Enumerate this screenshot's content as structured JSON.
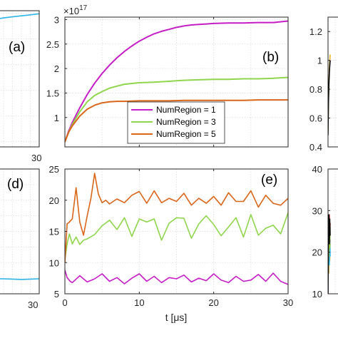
{
  "chart_data": [
    {
      "panel": "(a)",
      "type": "line",
      "partial": true,
      "x_ticks": [
        "30"
      ],
      "series": [
        {
          "color": "#2cb5e6",
          "x": [
            0,
            5,
            10,
            15,
            20,
            25,
            30
          ],
          "y": [
            2.85,
            2.88,
            2.91,
            2.93,
            2.95,
            2.97,
            2.99
          ]
        }
      ],
      "xlim": [
        0,
        30
      ],
      "ylim": [
        0.4,
        3.05
      ],
      "grid": true
    },
    {
      "panel": "(b)",
      "type": "line",
      "exponent": "×10",
      "exponent_power": "17",
      "xlim": [
        0,
        30
      ],
      "ylim": [
        0.4,
        3.05
      ],
      "y_ticks": [
        "1",
        "1.5",
        "2",
        "2.5",
        "3"
      ],
      "y_tick_values": [
        1,
        1.5,
        2,
        2.5,
        3
      ],
      "x_tick_values": [
        0,
        10,
        20,
        30
      ],
      "grid": true,
      "legend_placement": "bottom-center",
      "series": [
        {
          "name": "NumRegion = 1",
          "color": "#c61ec6",
          "x": [
            0,
            0.5,
            1,
            2,
            3,
            4,
            5,
            6,
            7,
            8,
            9,
            10,
            11,
            12,
            13,
            14,
            15,
            16,
            17,
            18,
            19,
            20,
            22,
            24,
            26,
            28,
            30
          ],
          "y": [
            0.5,
            0.72,
            0.9,
            1.2,
            1.47,
            1.7,
            1.9,
            2.07,
            2.22,
            2.35,
            2.46,
            2.56,
            2.64,
            2.71,
            2.76,
            2.8,
            2.84,
            2.87,
            2.89,
            2.9,
            2.91,
            2.92,
            2.93,
            2.93,
            2.94,
            2.94,
            2.97
          ]
        },
        {
          "name": "NumRegion = 3",
          "color": "#8fd64d",
          "x": [
            0,
            0.5,
            1,
            2,
            3,
            4,
            5,
            6,
            7,
            8,
            10,
            12,
            14,
            16,
            18,
            20,
            22,
            24,
            26,
            28,
            30
          ],
          "y": [
            0.5,
            0.7,
            0.86,
            1.12,
            1.32,
            1.45,
            1.53,
            1.6,
            1.64,
            1.68,
            1.71,
            1.72,
            1.74,
            1.76,
            1.77,
            1.78,
            1.78,
            1.79,
            1.79,
            1.8,
            1.82
          ]
        },
        {
          "name": "NumRegion = 5",
          "color": "#d9661a",
          "x": [
            0,
            0.5,
            1,
            2,
            3,
            4,
            5,
            6,
            7,
            8,
            10,
            12,
            14,
            16,
            18,
            20,
            22,
            24,
            26,
            28,
            30
          ],
          "y": [
            0.5,
            0.7,
            0.83,
            1.03,
            1.17,
            1.25,
            1.3,
            1.32,
            1.33,
            1.33,
            1.34,
            1.34,
            1.34,
            1.35,
            1.35,
            1.35,
            1.35,
            1.35,
            1.36,
            1.36,
            1.36
          ]
        }
      ]
    },
    {
      "panel": "(c)",
      "type": "line",
      "partial": true,
      "xlim": [
        0,
        30
      ],
      "ylim": [
        0.4,
        1.3
      ],
      "y_ticks": [
        "0.4",
        "0.6",
        "0.8",
        "1",
        "1.2"
      ],
      "y_tick_values": [
        0.4,
        0.6,
        0.8,
        1.0,
        1.2
      ],
      "grid": true,
      "series": [
        {
          "color": "#e8b520",
          "x": [
            0,
            0.3,
            0.6,
            1.0,
            1.5
          ],
          "y": [
            0.5,
            0.72,
            0.84,
            0.96,
            1.04
          ]
        },
        {
          "color": "#000000",
          "x": [
            0,
            0.3,
            0.6,
            1.0,
            1.5
          ],
          "y": [
            0.48,
            0.7,
            0.83,
            0.93,
            1.0
          ]
        }
      ]
    },
    {
      "panel": "(d)",
      "type": "line",
      "partial": true,
      "x_ticks": [
        "30"
      ],
      "xlim": [
        0,
        30
      ],
      "ylim": [
        5,
        25
      ],
      "grid": true,
      "series": [
        {
          "color": "#2cb5e6",
          "x": [
            0,
            10,
            20,
            30
          ],
          "y": [
            7.4,
            7.4,
            7.3,
            7.4
          ]
        }
      ]
    },
    {
      "panel": "(e)",
      "type": "line",
      "xlabel": "t [μs]",
      "xlim": [
        0,
        30
      ],
      "ylim": [
        5,
        25
      ],
      "x_ticks": [
        "0",
        "10",
        "20",
        "30"
      ],
      "x_tick_values": [
        0,
        10,
        20,
        30
      ],
      "y_ticks": [
        "5",
        "10",
        "15",
        "20",
        "25"
      ],
      "y_tick_values": [
        5,
        10,
        15,
        20,
        25
      ],
      "grid": true,
      "series": [
        {
          "color": "#c61ec6",
          "x": [
            0,
            0.3,
            0.7,
            1,
            2,
            3,
            4,
            5,
            6,
            7,
            8,
            9,
            10,
            11,
            12,
            13,
            14,
            15,
            16,
            17,
            18,
            19,
            20,
            21,
            22,
            23,
            24,
            25,
            26,
            27,
            28,
            29,
            30
          ],
          "y": [
            8.8,
            7.6,
            7.0,
            6.8,
            7.9,
            6.9,
            7.4,
            8.2,
            7.0,
            7.6,
            6.6,
            7.5,
            8.2,
            7.0,
            7.8,
            6.8,
            7.6,
            7.4,
            8.0,
            6.9,
            7.5,
            7.1,
            8.2,
            7.2,
            6.8,
            7.8,
            7.0,
            7.2,
            8.1,
            7.0,
            8.3,
            7.0,
            6.5
          ]
        },
        {
          "color": "#8fd64d",
          "x": [
            0,
            0.3,
            0.6,
            1,
            1.5,
            2,
            2.5,
            3,
            4,
            5,
            6,
            7,
            8,
            9,
            10,
            11,
            12,
            13,
            14,
            15,
            16,
            17,
            18,
            19,
            20,
            21,
            22,
            23,
            24,
            25,
            26,
            27,
            28,
            29,
            30
          ],
          "y": [
            10.5,
            13.0,
            14.6,
            13.0,
            14.1,
            12.9,
            13.6,
            13.8,
            14.5,
            15.9,
            16.8,
            15.3,
            17.2,
            14.2,
            17.0,
            16.5,
            17.0,
            13.6,
            16.3,
            17.2,
            17.1,
            13.9,
            16.2,
            17.5,
            16.1,
            14.3,
            15.7,
            17.2,
            14.1,
            17.7,
            14.4,
            15.5,
            16.0,
            14.6,
            18.0
          ]
        },
        {
          "color": "#d9661a",
          "x": [
            0,
            0.3,
            0.6,
            1,
            1.5,
            2,
            2.5,
            3,
            3.5,
            4,
            4.5,
            5,
            5.5,
            6,
            7,
            8,
            9,
            10,
            11,
            12,
            13,
            14,
            15,
            16,
            17,
            18,
            19,
            20,
            21,
            22,
            23,
            24,
            25,
            26,
            27,
            28,
            29,
            30
          ],
          "y": [
            10.0,
            16.2,
            16.5,
            17.0,
            22.0,
            16.5,
            14.4,
            17.5,
            20.3,
            24.3,
            21.0,
            19.6,
            20.0,
            19.4,
            20.2,
            19.6,
            20.8,
            21.4,
            19.5,
            21.5,
            19.6,
            20.3,
            19.8,
            21.1,
            19.2,
            20.3,
            19.5,
            20.6,
            19.2,
            21.2,
            19.8,
            19.8,
            21.5,
            18.9,
            20.8,
            19.5,
            19.2,
            20.3
          ]
        }
      ]
    },
    {
      "panel": "(f)",
      "type": "line",
      "partial": true,
      "xlim": [
        0,
        30
      ],
      "ylim": [
        10,
        40
      ],
      "y_ticks": [
        "10",
        "20",
        "30",
        "40"
      ],
      "y_tick_values": [
        10,
        20,
        30,
        40
      ],
      "grid": true,
      "series": [
        {
          "color": "#e8b520",
          "x": [
            0,
            0.3,
            0.6,
            0.9,
            1.2,
            1.5
          ],
          "y": [
            12,
            20,
            15,
            24,
            18,
            22
          ]
        },
        {
          "color": "#c61ec6",
          "x": [
            0,
            0.3,
            0.6,
            0.9,
            1.2,
            1.5
          ],
          "y": [
            10,
            22,
            18,
            26,
            20,
            23
          ]
        },
        {
          "color": "#2cb5e6",
          "x": [
            0,
            0.3,
            0.6,
            0.9,
            1.2,
            1.5
          ],
          "y": [
            11,
            18,
            24,
            17,
            25,
            19
          ]
        },
        {
          "color": "#8fd64d",
          "x": [
            0,
            0.3,
            0.6,
            0.9,
            1.2,
            1.5
          ],
          "y": [
            12,
            25,
            19,
            27,
            21,
            26
          ]
        },
        {
          "color": "#d92020",
          "x": [
            0,
            0.3,
            0.6,
            0.9,
            1.2,
            1.5
          ],
          "y": [
            13,
            27,
            22,
            29,
            24,
            27
          ]
        },
        {
          "color": "#000000",
          "x": [
            0,
            0.3,
            0.6,
            0.9,
            1.2,
            1.5
          ],
          "y": [
            10,
            26,
            29,
            22,
            28,
            24
          ]
        }
      ]
    }
  ]
}
